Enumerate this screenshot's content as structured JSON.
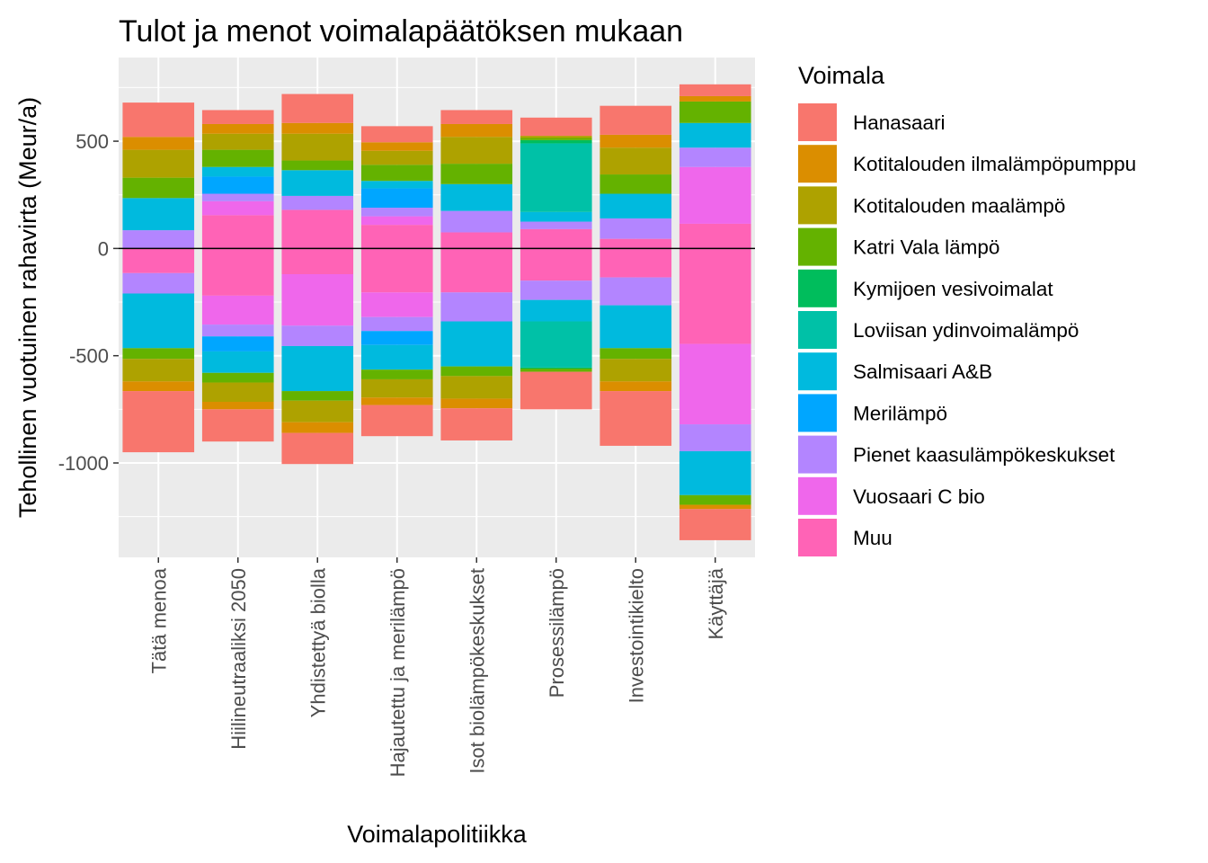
{
  "chart_data": {
    "type": "bar",
    "stacked": true,
    "diverging": true,
    "title": "Tulot ja menot voimalapäätöksen mukaan",
    "xlabel": "Voimalapolitiikka",
    "ylabel": "Tehollinen vuotuinen rahavirta (Meur/a)",
    "ylim": [
      -1440,
      890
    ],
    "yticks": [
      500,
      0,
      -500,
      -1000
    ],
    "grid": true,
    "zero_line": true,
    "legend_position": "right",
    "legend": {
      "title": "Voimala",
      "entries": [
        {
          "label": "Hanasaari",
          "color": "#F8766D"
        },
        {
          "label": "Kotitalouden ilmalämpöpumppu",
          "color": "#DB8E00"
        },
        {
          "label": "Kotitalouden maalämpö",
          "color": "#AEA200"
        },
        {
          "label": "Katri Vala lämpö",
          "color": "#64B200"
        },
        {
          "label": "Kymijoen vesivoimalat",
          "color": "#00BD5C"
        },
        {
          "label": "Loviisan ydinvoimalämpö",
          "color": "#00C1A7"
        },
        {
          "label": "Salmisaari A&B",
          "color": "#00BADE"
        },
        {
          "label": "Merilämpö",
          "color": "#00A6FF"
        },
        {
          "label": "Pienet kaasulämpökeskukset",
          "color": "#B385FF"
        },
        {
          "label": "Vuosaari C bio",
          "color": "#EF67EB"
        },
        {
          "label": "Muu",
          "color": "#FF63B6"
        }
      ]
    },
    "categories": [
      "Tätä menoa",
      "Hiilineutraaliksi 2050",
      "Yhdistettyä biolla",
      "Hajautettu ja merilämpö",
      "Isot biolämpökeskukset",
      "Prosessilämpö",
      "Investointikielto",
      "Käyttäjä"
    ],
    "series_positive": [
      {
        "name": "Muu",
        "values": [
          0,
          155,
          180,
          110,
          75,
          90,
          45,
          115
        ]
      },
      {
        "name": "Vuosaari C bio",
        "values": [
          0,
          65,
          0,
          40,
          0,
          0,
          0,
          265
        ]
      },
      {
        "name": "Pienet kaasulämpökeskukset",
        "values": [
          85,
          35,
          65,
          40,
          100,
          35,
          95,
          90
        ]
      },
      {
        "name": "Merilämpö",
        "values": [
          0,
          80,
          0,
          90,
          0,
          0,
          0,
          0
        ]
      },
      {
        "name": "Salmisaari A&B",
        "values": [
          150,
          45,
          120,
          35,
          125,
          45,
          115,
          115
        ]
      },
      {
        "name": "Loviisan ydinvoimalämpö",
        "values": [
          0,
          0,
          0,
          0,
          0,
          320,
          0,
          0
        ]
      },
      {
        "name": "Kymijoen vesivoimalat",
        "values": [
          0,
          0,
          0,
          0,
          0,
          15,
          0,
          0
        ]
      },
      {
        "name": "Katri Vala lämpö",
        "values": [
          95,
          80,
          45,
          75,
          95,
          10,
          90,
          100
        ]
      },
      {
        "name": "Kotitalouden maalämpö",
        "values": [
          130,
          75,
          125,
          65,
          125,
          10,
          125,
          0
        ]
      },
      {
        "name": "Kotitalouden ilmalämpöpumppu",
        "values": [
          60,
          45,
          50,
          40,
          60,
          0,
          60,
          25
        ]
      },
      {
        "name": "Hanasaari",
        "values": [
          160,
          65,
          135,
          75,
          65,
          85,
          135,
          55
        ]
      }
    ],
    "series_negative": [
      {
        "name": "Muu",
        "values": [
          -115,
          -220,
          -120,
          -205,
          -205,
          -150,
          -135,
          -445
        ]
      },
      {
        "name": "Vuosaari C bio",
        "values": [
          0,
          -135,
          -240,
          -115,
          0,
          0,
          0,
          -375
        ]
      },
      {
        "name": "Pienet kaasulämpökeskukset",
        "values": [
          -95,
          -55,
          -95,
          -65,
          -135,
          -90,
          -130,
          -125
        ]
      },
      {
        "name": "Merilämpö",
        "values": [
          0,
          -70,
          0,
          -65,
          0,
          0,
          0,
          0
        ]
      },
      {
        "name": "Salmisaari A&B",
        "values": [
          -255,
          -100,
          -210,
          -115,
          -210,
          -100,
          -200,
          -205
        ]
      },
      {
        "name": "Loviisan ydinvoimalämpö",
        "values": [
          0,
          0,
          0,
          0,
          0,
          -215,
          0,
          0
        ]
      },
      {
        "name": "Kymijoen vesivoimalat",
        "values": [
          0,
          0,
          0,
          0,
          0,
          -5,
          0,
          0
        ]
      },
      {
        "name": "Katri Vala lämpö",
        "values": [
          -50,
          -45,
          -45,
          -45,
          -45,
          -15,
          -50,
          -45
        ]
      },
      {
        "name": "Kotitalouden maalämpö",
        "values": [
          -105,
          -90,
          -100,
          -85,
          -105,
          0,
          -105,
          0
        ]
      },
      {
        "name": "Kotitalouden ilmalämpöpumppu",
        "values": [
          -45,
          -35,
          -50,
          -35,
          -45,
          0,
          -45,
          -20
        ]
      },
      {
        "name": "Hanasaari",
        "values": [
          -285,
          -150,
          -145,
          -145,
          -150,
          -175,
          -255,
          -145
        ]
      }
    ]
  }
}
